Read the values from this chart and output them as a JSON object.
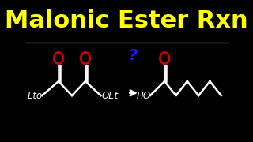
{
  "title": "Malonic Ester Rxn",
  "title_color": "#FFFF00",
  "title_fontsize": 22,
  "background_color": "#000000",
  "line_color": "#FFFFFF",
  "red_color": "#CC0000",
  "blue_color": "#1a1aff",
  "figsize": [
    3.2,
    1.8
  ],
  "dpi": 100,
  "xlim": [
    0,
    10
  ],
  "ylim": [
    0,
    5.5
  ]
}
